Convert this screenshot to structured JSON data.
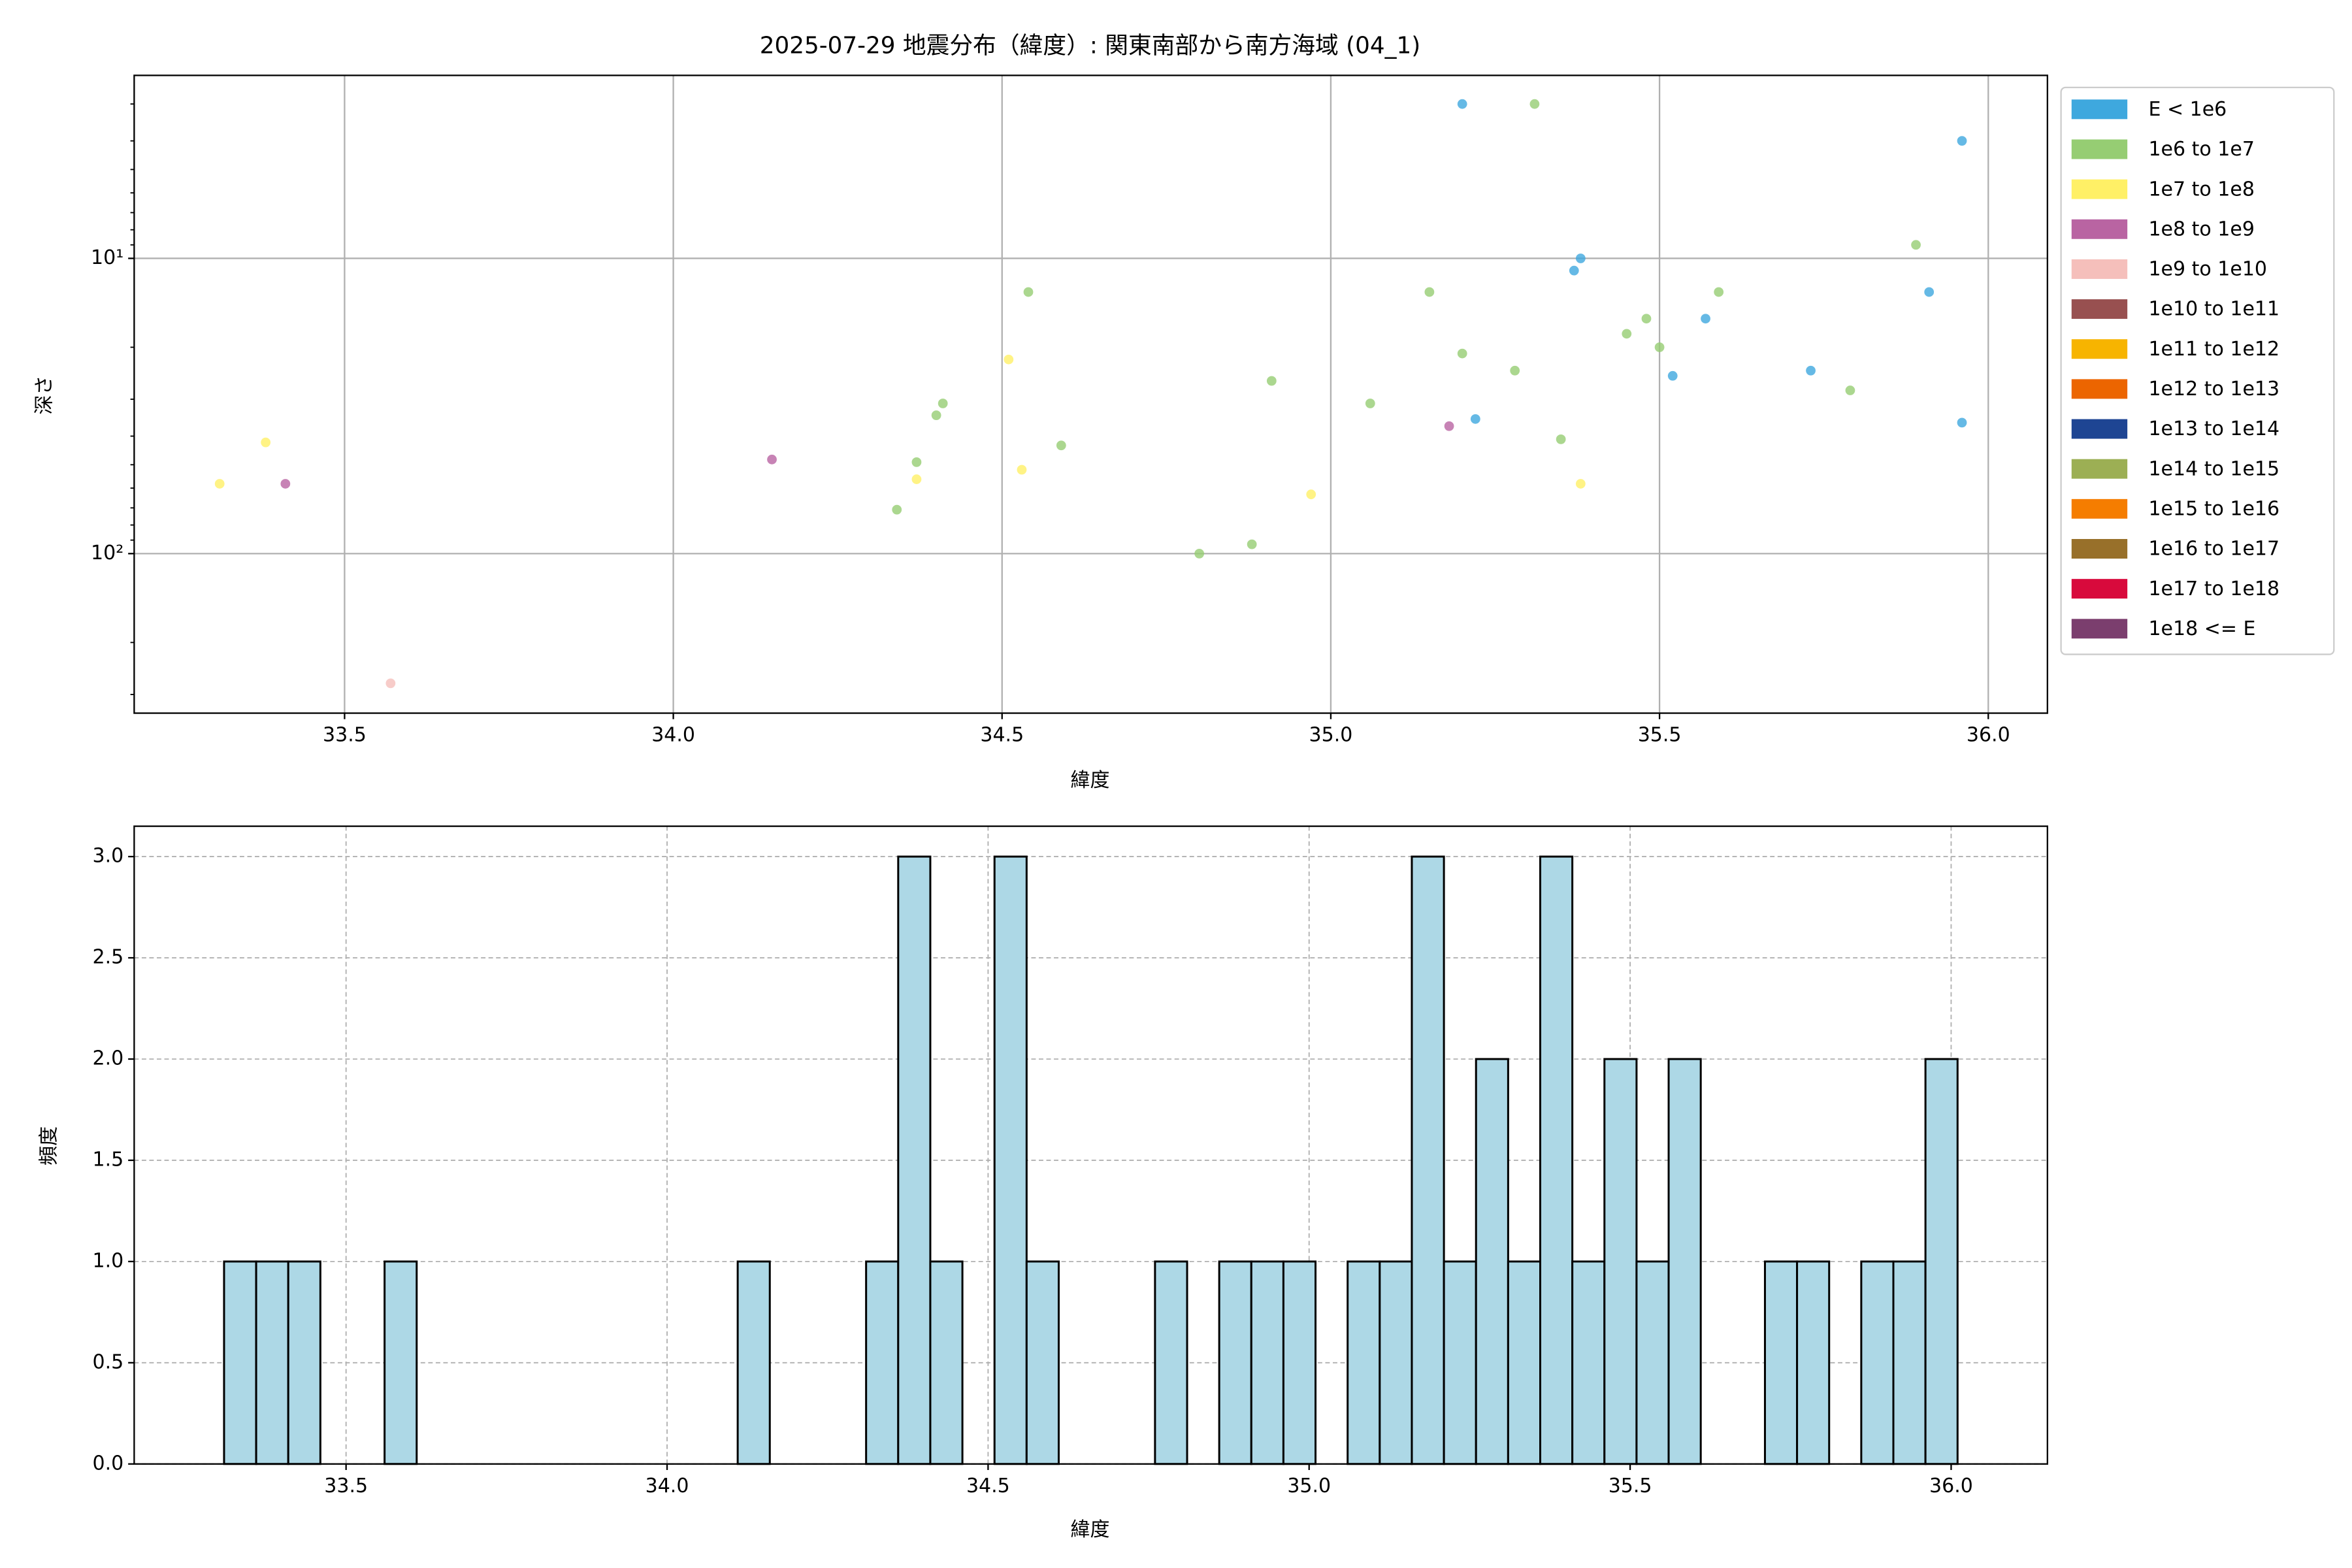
{
  "chart_data": [
    {
      "type": "scatter",
      "title": "2025-07-29 地震分布（緯度）: 関東南部から南方海域 (04_1)",
      "xlabel": "緯度",
      "ylabel": "深さ",
      "log_y": true,
      "grid": true,
      "legend": "outside right",
      "xlim": [
        33.18,
        36.09
      ],
      "xticks": [
        33.5,
        {
          "value": 34.0,
          "label": "34.0"
        },
        34.5,
        {
          "value": 35.0,
          "label": "35.0"
        },
        35.5,
        {
          "value": 36.0,
          "label": "36.0"
        }
      ],
      "ylim": [
        347,
        2.4
      ],
      "yticks": [
        {
          "value": 10,
          "label": "10¹"
        },
        {
          "value": 100,
          "label": "10²"
        }
      ],
      "yminorticks": [
        3,
        4,
        5,
        6,
        7,
        8,
        9,
        20,
        30,
        40,
        50,
        60,
        70,
        80,
        90,
        200,
        300
      ],
      "series": [
        {
          "name": "E < 1e6",
          "color": "#3ea8de",
          "x": [
            35.2,
            35.96,
            35.38,
            35.37,
            35.91,
            35.57,
            35.52,
            35.73,
            35.22,
            35.96
          ],
          "values": [
            3.0,
            4.0,
            10,
            11,
            13,
            16,
            25,
            24,
            35,
            36
          ]
        },
        {
          "name": "1e6 to 1e7",
          "color": "#96cd73",
          "x": [
            35.31,
            35.89,
            34.54,
            35.15,
            35.48,
            35.45,
            35.5,
            35.59,
            35.2,
            35.28,
            34.91,
            35.06,
            34.41,
            34.4,
            35.79,
            34.37,
            34.59,
            35.35,
            34.34,
            34.88,
            34.8
          ],
          "values": [
            3.0,
            9,
            13,
            13,
            16,
            18,
            20,
            13,
            21,
            24,
            26,
            31,
            31,
            34,
            28,
            49,
            43,
            41,
            71,
            93,
            100
          ]
        },
        {
          "name": "1e7 to 1e8",
          "color": "#fff066",
          "x": [
            33.38,
            33.31,
            34.51,
            34.37,
            34.53,
            34.97,
            35.38
          ],
          "values": [
            42,
            58,
            22,
            56,
            52,
            63,
            58
          ]
        },
        {
          "name": "1e8 to 1e9",
          "color": "#b964a2",
          "x": [
            33.41,
            34.15,
            35.18
          ],
          "values": [
            58,
            48,
            37
          ]
        },
        {
          "name": "1e9 to 1e10",
          "color": "#f5bfbb",
          "x": [
            33.57
          ],
          "values": [
            275
          ]
        },
        {
          "name": "1e10 to 1e11",
          "color": "#985050",
          "x": [],
          "values": []
        },
        {
          "name": "1e11 to 1e12",
          "color": "#f7b400",
          "x": [],
          "values": []
        },
        {
          "name": "1e12 to 1e13",
          "color": "#ec6500",
          "x": [],
          "values": []
        },
        {
          "name": "1e13 to 1e14",
          "color": "#1e4593",
          "x": [],
          "values": []
        },
        {
          "name": "1e14 to 1e15",
          "color": "#9caf54",
          "x": [],
          "values": []
        },
        {
          "name": "1e15 to 1e16",
          "color": "#f57d00",
          "x": [],
          "values": []
        },
        {
          "name": "1e16 to 1e17",
          "color": "#98702a",
          "x": [],
          "values": []
        },
        {
          "name": "1e17 to 1e18",
          "color": "#d80a3c",
          "x": [],
          "values": []
        },
        {
          "name": "1e18 <= E",
          "color": "#7b3e6e",
          "x": [],
          "values": []
        }
      ]
    },
    {
      "type": "histogram",
      "xlabel": "緯度",
      "ylabel": "頻度",
      "grid": true,
      "color": "#add8e6",
      "edgecolor": "#000000",
      "xlim": [
        33.17,
        36.15
      ],
      "xticks": [
        33.5,
        {
          "value": 34.0,
          "label": "34.0"
        },
        34.5,
        {
          "value": 35.0,
          "label": "35.0"
        },
        35.5,
        {
          "value": 36.0,
          "label": "36.0"
        }
      ],
      "ylim": [
        0,
        3.15
      ],
      "yticks": [
        {
          "value": 0,
          "label": "0.0"
        },
        0.5,
        {
          "value": 1,
          "label": "1.0"
        },
        1.5,
        {
          "value": 2,
          "label": "2.0"
        },
        2.5,
        {
          "value": 3,
          "label": "3.0"
        }
      ],
      "bins": [
        33.31,
        33.36,
        33.41,
        33.46,
        33.51,
        33.56,
        33.61,
        33.66,
        33.71,
        33.76,
        33.81,
        33.86,
        33.91,
        33.96,
        34.01,
        34.06,
        34.11,
        34.16,
        34.21,
        34.26,
        34.31,
        34.36,
        34.41,
        34.46,
        34.51,
        34.56,
        34.61,
        34.66,
        34.71,
        34.76,
        34.81,
        34.86,
        34.91,
        34.96,
        35.01,
        35.06,
        35.11,
        35.16,
        35.21,
        35.26,
        35.31,
        35.36,
        35.41,
        35.46,
        35.51,
        35.56,
        35.61,
        35.66,
        35.71,
        35.76,
        35.81,
        35.86,
        35.91,
        35.96,
        36.01
      ],
      "values": [
        1,
        1,
        1,
        0,
        0,
        1,
        0,
        0,
        0,
        0,
        0,
        0,
        0,
        0,
        0,
        0,
        1,
        0,
        0,
        0,
        1,
        3,
        1,
        0,
        3,
        1,
        0,
        0,
        0,
        1,
        0,
        1,
        1,
        1,
        0,
        1,
        1,
        3,
        1,
        2,
        1,
        3,
        1,
        2,
        1,
        2,
        0,
        0,
        1,
        1,
        0,
        1,
        1,
        2
      ]
    }
  ]
}
